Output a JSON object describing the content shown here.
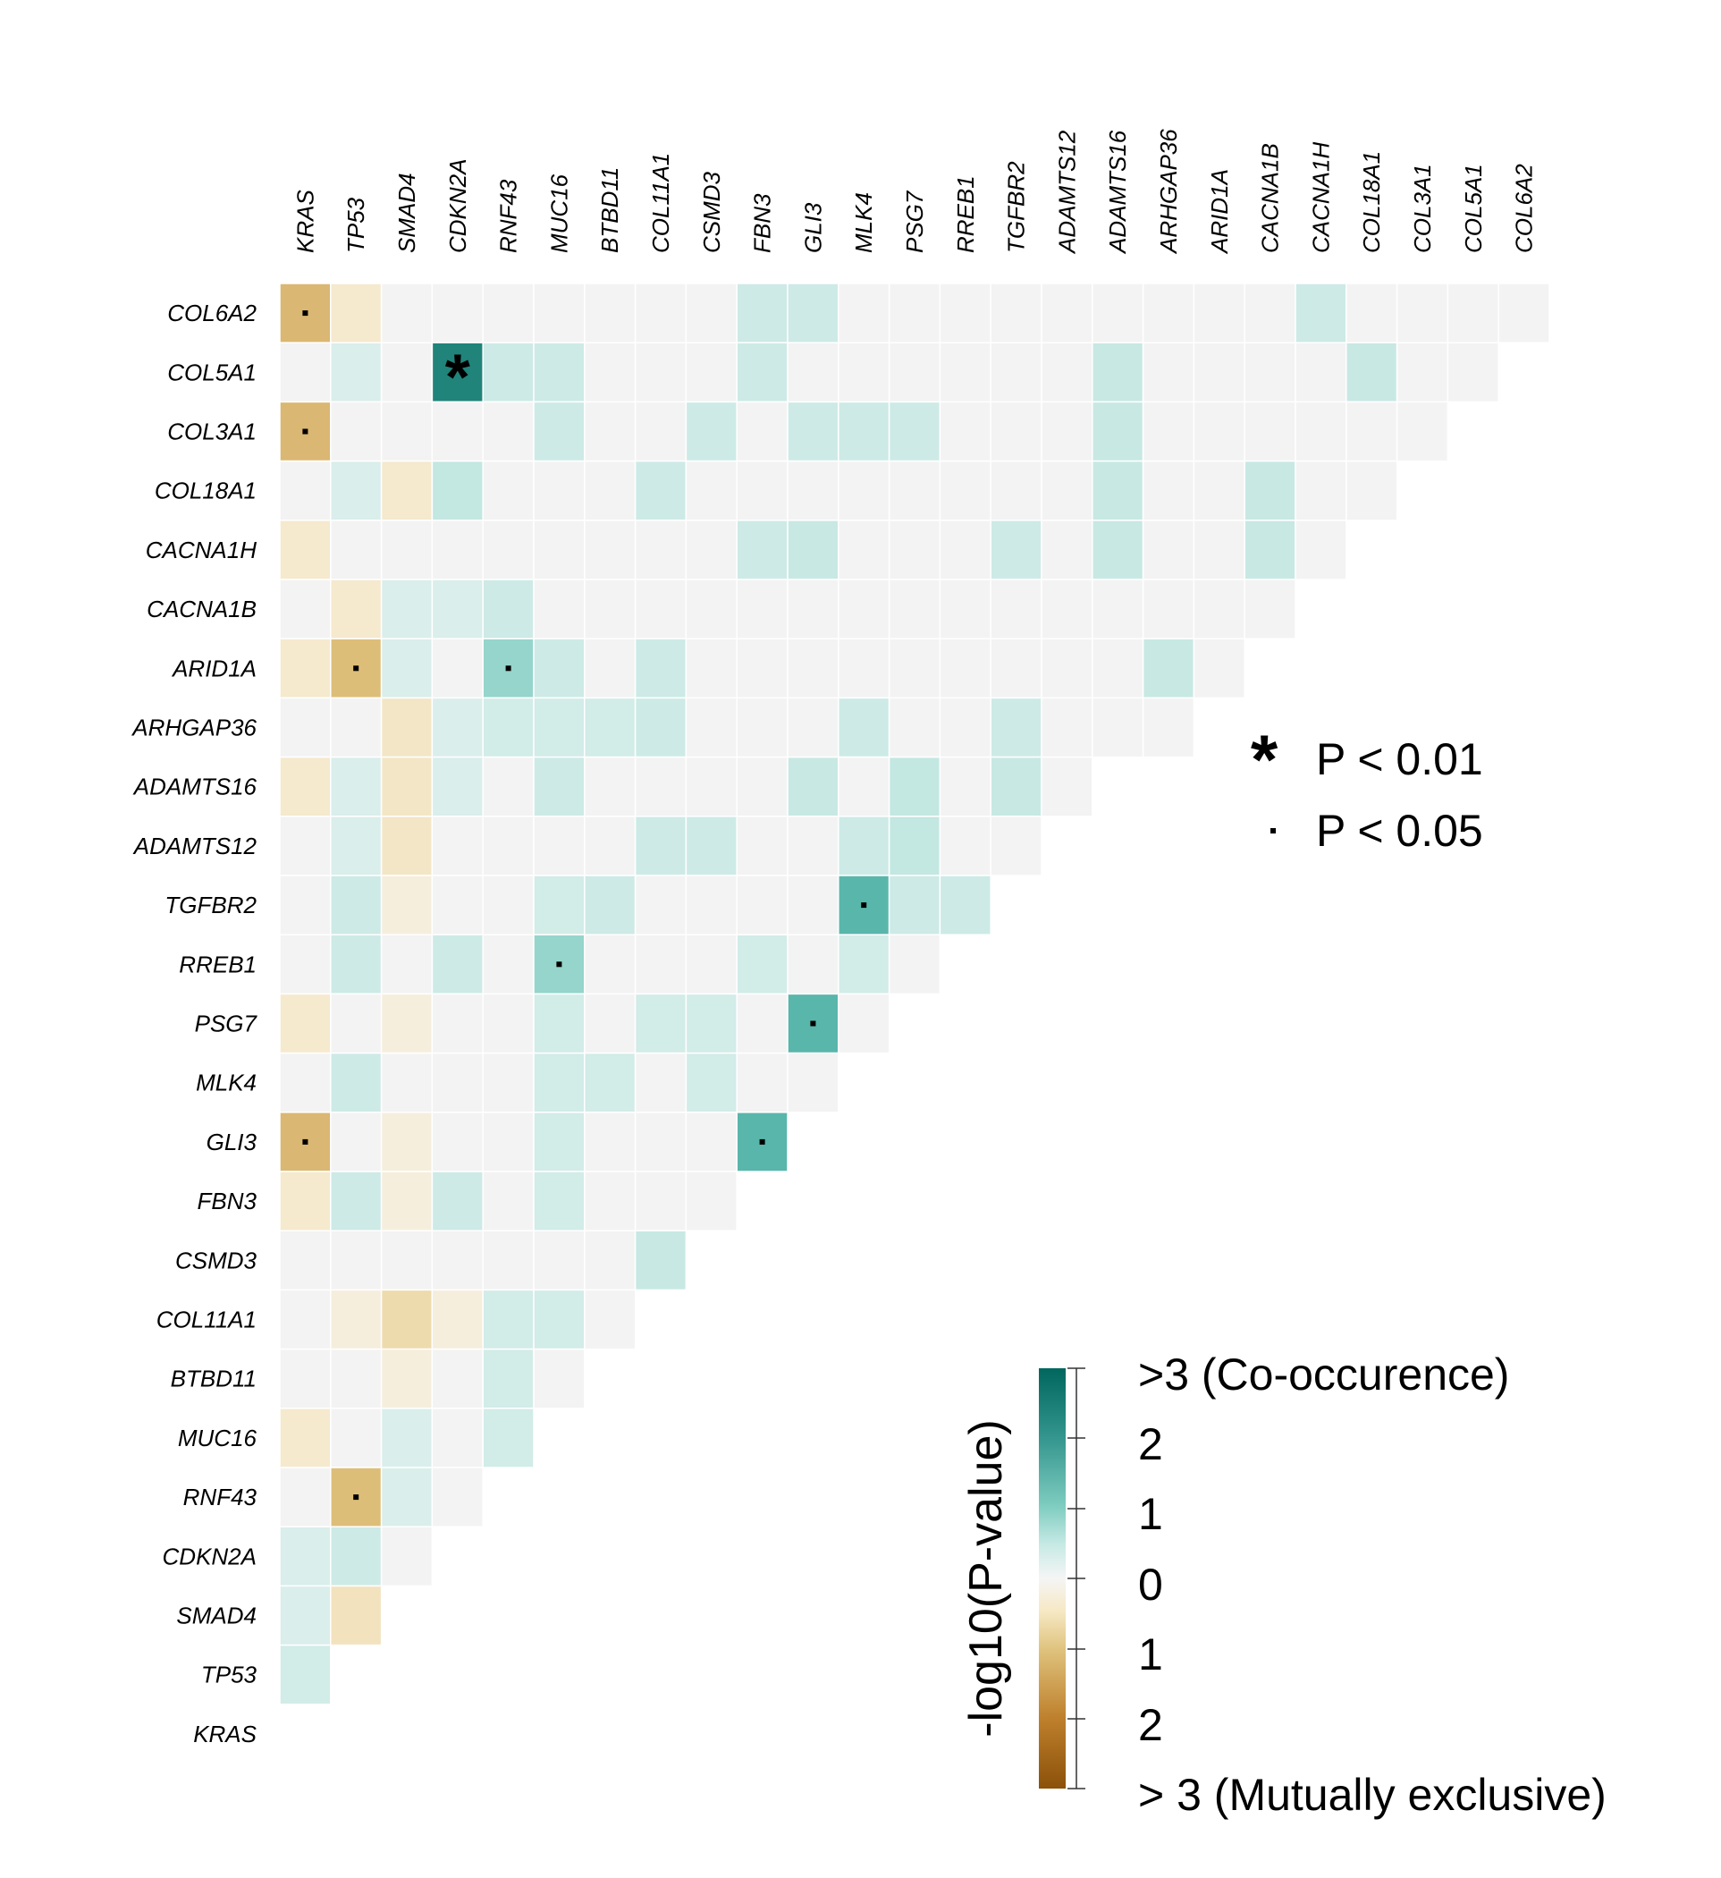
{
  "chart_data": {
    "type": "heatmap",
    "column_genes": [
      "KRAS",
      "TP53",
      "SMAD4",
      "CDKN2A",
      "RNF43",
      "MUC16",
      "BTBD11",
      "COL11A1",
      "CSMD3",
      "FBN3",
      "GLI3",
      "MLK4",
      "PSG7",
      "RREB1",
      "TGFBR2",
      "ADAMTS12",
      "ADAMTS16",
      "ARHGAP36",
      "ARID1A",
      "CACNA1B",
      "CACNA1H",
      "COL18A1",
      "COL3A1",
      "COL5A1",
      "COL6A2"
    ],
    "row_genes": [
      "COL6A2",
      "COL5A1",
      "COL3A1",
      "COL18A1",
      "CACNA1H",
      "CACNA1B",
      "ARID1A",
      "ARHGAP36",
      "ADAMTS16",
      "ADAMTS12",
      "TGFBR2",
      "RREB1",
      "PSG7",
      "MLK4",
      "GLI3",
      "FBN3",
      "CSMD3",
      "COL11A1",
      "BTBD11",
      "MUC16",
      "RNF43",
      "CDKN2A",
      "SMAD4",
      "TP53",
      "KRAS"
    ],
    "value_note": "signed -log10(P-value); positive = co-occurrence, negative = mutual exclusivity",
    "values": [
      [
        -1.8,
        -0.5,
        0,
        0,
        0,
        0,
        0,
        0,
        0,
        0.5,
        0.5,
        0,
        0,
        0,
        0,
        0,
        0,
        0,
        0,
        0,
        0.5,
        0,
        0,
        0,
        0
      ],
      [
        0,
        0.3,
        0,
        2.6,
        0.5,
        0.5,
        0,
        0,
        0,
        0.5,
        0,
        0,
        0,
        0,
        0,
        0,
        0.6,
        0,
        0,
        0,
        0,
        0.6,
        0,
        0
      ],
      [
        -1.8,
        0,
        0,
        0,
        0,
        0.5,
        0,
        0,
        0.5,
        0,
        0.5,
        0.5,
        0.5,
        0,
        0,
        0,
        0.6,
        0,
        0,
        0,
        0,
        0,
        0
      ],
      [
        0,
        0.3,
        -0.5,
        0.7,
        0,
        0,
        0,
        0.5,
        0,
        0,
        0,
        0,
        0,
        0,
        0,
        0,
        0.6,
        0,
        0,
        0.6,
        0,
        0
      ],
      [
        -0.5,
        0,
        0,
        0,
        0,
        0,
        0,
        0,
        0,
        0.5,
        0.6,
        0,
        0,
        0,
        0.5,
        0,
        0.6,
        0,
        0,
        0.6,
        0
      ],
      [
        0,
        -0.5,
        0.3,
        0.3,
        0.5,
        0,
        0,
        0,
        0,
        0,
        0,
        0,
        0,
        0,
        0,
        0,
        0,
        0,
        0,
        0
      ],
      [
        -0.5,
        -1.6,
        0.3,
        0,
        1.3,
        0.5,
        0,
        0.5,
        0,
        0,
        0,
        0,
        0,
        0,
        0,
        0,
        0,
        0.6,
        0
      ],
      [
        0,
        0,
        -0.6,
        0.3,
        0.4,
        0.4,
        0.4,
        0.5,
        0,
        0,
        0,
        0.5,
        0,
        0,
        0.5,
        0,
        0,
        0
      ],
      [
        -0.5,
        0.3,
        -0.6,
        0.3,
        0,
        0.5,
        0,
        0,
        0,
        0,
        0.6,
        0,
        0.7,
        0,
        0.6,
        0
      ],
      [
        0,
        0.3,
        -0.6,
        0,
        0,
        0,
        0,
        0.5,
        0.5,
        0,
        0,
        0.5,
        0.7,
        0,
        0
      ],
      [
        0,
        0.5,
        -0.3,
        0,
        0,
        0.4,
        0.5,
        0,
        0,
        0,
        0,
        1.9,
        0.5,
        0.5
      ],
      [
        0,
        0.5,
        0,
        0.5,
        0,
        1.3,
        0,
        0,
        0,
        0.4,
        0,
        0.4,
        0
      ],
      [
        -0.5,
        0,
        -0.3,
        0,
        0,
        0.4,
        0,
        0.4,
        0.4,
        0,
        1.9,
        0
      ],
      [
        0,
        0.5,
        0,
        0,
        0,
        0.4,
        0.4,
        0,
        0.4,
        0,
        0
      ],
      [
        -1.8,
        0,
        -0.3,
        0,
        0,
        0.4,
        0,
        0,
        0,
        1.9
      ],
      [
        -0.5,
        0.5,
        -0.3,
        0.5,
        0,
        0.4,
        0,
        0,
        0
      ],
      [
        0,
        0,
        0,
        0,
        0,
        0,
        0,
        0.6
      ],
      [
        0,
        -0.3,
        -0.9,
        -0.3,
        0.4,
        0.4,
        0
      ],
      [
        0,
        0,
        -0.3,
        0,
        0.4,
        0
      ],
      [
        -0.5,
        0,
        0.3,
        0,
        0.4
      ],
      [
        0,
        -1.6,
        0.3,
        0
      ],
      [
        0.3,
        0.5,
        0
      ],
      [
        0.3,
        -0.7
      ],
      [
        0.4
      ],
      []
    ],
    "significance": [
      {
        "row": "COL5A1",
        "col": "CDKN2A",
        "mark": "*"
      },
      {
        "row": "COL6A2",
        "col": "KRAS",
        "mark": "."
      },
      {
        "row": "COL3A1",
        "col": "KRAS",
        "mark": "."
      },
      {
        "row": "ARID1A",
        "col": "TP53",
        "mark": "."
      },
      {
        "row": "ARID1A",
        "col": "RNF43",
        "mark": "."
      },
      {
        "row": "TGFBR2",
        "col": "MLK4",
        "mark": "."
      },
      {
        "row": "RREB1",
        "col": "MUC16",
        "mark": "."
      },
      {
        "row": "PSG7",
        "col": "GLI3",
        "mark": "."
      },
      {
        "row": "GLI3",
        "col": "KRAS",
        "mark": "."
      },
      {
        "row": "GLI3",
        "col": "FBN3",
        "mark": "."
      },
      {
        "row": "RNF43",
        "col": "TP53",
        "mark": "."
      }
    ],
    "colorscale": {
      "zero": "#f3f3f3",
      "cooccurrence_max": "#01665e",
      "exclusive_max": "#8c510a",
      "range": [
        -3,
        3
      ]
    }
  },
  "legend": {
    "star_symbol": "*",
    "star_label": "P < 0.01",
    "dot_symbol": ".",
    "dot_label": "P < 0.05"
  },
  "colorbar": {
    "title": "-log10(P-value)",
    "labels": [
      ">3 (Co-occurence)",
      "2",
      "1",
      "0",
      "1",
      "2",
      "> 3 (Mutually exclusive)"
    ]
  }
}
